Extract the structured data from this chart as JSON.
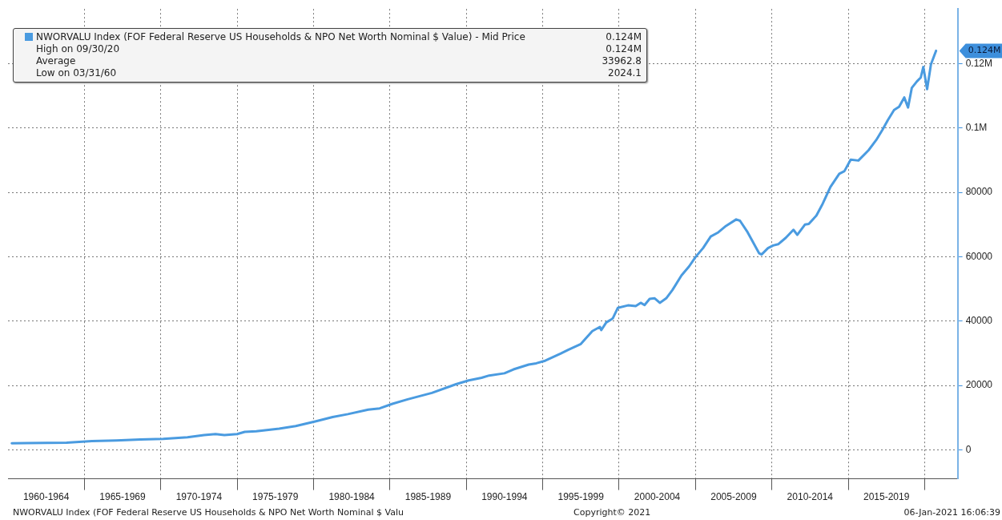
{
  "chart_data": {
    "type": "line",
    "x": [
      "1960-03-31",
      "1961-04",
      "1963-11",
      "1965-07",
      "1967-02",
      "1968-09",
      "1970-03",
      "1971-10",
      "1972-11",
      "1973-08",
      "1974-03",
      "1975-01",
      "1975-07",
      "1976-04",
      "1977-10",
      "1978-11",
      "1980-03",
      "1981-04",
      "1982-04",
      "1983-08",
      "1984-05",
      "1985-03",
      "1986-03",
      "1987-10",
      "1989-05",
      "1990-03",
      "1991-01",
      "1991-07",
      "1992-07",
      "1993-02",
      "1994-02",
      "1994-08",
      "1995-03",
      "1996-03",
      "1996-09",
      "1997-07",
      "1998-04",
      "1998-10",
      "1998-11",
      "1999-03",
      "1999-08",
      "1999-12",
      "2000-08",
      "2001-02",
      "2001-06",
      "2001-09",
      "2002-01",
      "2002-05",
      "2002-09",
      "2003-02",
      "2003-07",
      "2004-02",
      "2004-08",
      "2005-01",
      "2005-07",
      "2006-01",
      "2006-07",
      "2007-01",
      "2007-09",
      "2007-12",
      "2008-06",
      "2009-03",
      "2009-05",
      "2009-10",
      "2010-02",
      "2010-06",
      "2010-12",
      "2011-06",
      "2011-09",
      "2012-03",
      "2012-06",
      "2012-12",
      "2013-05",
      "2013-11",
      "2014-06",
      "2014-10",
      "2015-03",
      "2015-09",
      "2016-05",
      "2016-11",
      "2017-04",
      "2017-08",
      "2018-01",
      "2018-05",
      "2018-09",
      "2018-12",
      "2019-03",
      "2019-07",
      "2019-10",
      "2019-12",
      "2020-03",
      "2020-06",
      "2020-09-30"
    ],
    "series": [
      {
        "name": "NWORVALU Index (FOF Federal Reserve US Households & NPO Net Worth Nominal $ Value) - Mid Price",
        "color": "#4a9be0",
        "values": [
          2024.1,
          2100,
          2200,
          2700,
          2900,
          3200,
          3400,
          3900,
          4600,
          4900,
          4600,
          4900,
          5600,
          5800,
          6600,
          7400,
          8900,
          10200,
          11100,
          12500,
          12900,
          14300,
          15700,
          17700,
          20400,
          21600,
          22400,
          23100,
          23800,
          25000,
          26500,
          26900,
          27700,
          29900,
          31100,
          32900,
          36900,
          38200,
          37200,
          39600,
          40800,
          44100,
          44900,
          44700,
          45700,
          45000,
          46900,
          47100,
          45700,
          47100,
          49700,
          54200,
          57000,
          59900,
          62700,
          66300,
          67600,
          69600,
          71600,
          71200,
          67600,
          61100,
          60700,
          62700,
          63500,
          63900,
          65900,
          68400,
          66800,
          70000,
          70200,
          72800,
          76500,
          81700,
          85800,
          86600,
          90200,
          89900,
          93100,
          96300,
          99500,
          102400,
          105600,
          106600,
          109500,
          106400,
          112500,
          114500,
          115700,
          119000,
          112100,
          119800,
          124000
        ]
      }
    ],
    "xlim": [
      "1960-01",
      "2022-03"
    ],
    "xticks": [
      {
        "value": "1962-07",
        "label": "1960-1964"
      },
      {
        "value": "1965",
        "label": null
      },
      {
        "value": "1967-07",
        "label": "1965-1969"
      },
      {
        "value": "1970",
        "label": null
      },
      {
        "value": "1972-07",
        "label": "1970-1974"
      },
      {
        "value": "1975",
        "label": null
      },
      {
        "value": "1977-07",
        "label": "1975-1979"
      },
      {
        "value": "1980",
        "label": null
      },
      {
        "value": "1982-07",
        "label": "1980-1984"
      },
      {
        "value": "1985",
        "label": null
      },
      {
        "value": "1987-07",
        "label": "1985-1989"
      },
      {
        "value": "1990",
        "label": null
      },
      {
        "value": "1992-07",
        "label": "1990-1994"
      },
      {
        "value": "1995",
        "label": null
      },
      {
        "value": "1997-07",
        "label": "1995-1999"
      },
      {
        "value": "2000",
        "label": null
      },
      {
        "value": "2002-07",
        "label": "2000-2004"
      },
      {
        "value": "2005",
        "label": null
      },
      {
        "value": "2007-07",
        "label": "2005-2009"
      },
      {
        "value": "2010",
        "label": null
      },
      {
        "value": "2012-07",
        "label": "2010-2014"
      },
      {
        "value": "2015",
        "label": null
      },
      {
        "value": "2017-07",
        "label": "2015-2019"
      },
      {
        "value": "2020",
        "label": null
      }
    ],
    "ylim": [
      -9000,
      137000
    ],
    "yticks": [
      0,
      20000,
      40000,
      60000,
      80000,
      {
        "value": 100000,
        "label": "0.1M"
      },
      {
        "value": 120000,
        "label": "0.12M"
      }
    ],
    "grid": true,
    "legend": "top left",
    "marker": "none",
    "line_style": "solid",
    "annotations": [
      "0.124M",
      "High on 09/30/20",
      "0.124M",
      "Average",
      "33962.8",
      "Low on 03/31/60",
      "2024.1",
      "NWORVALU Index (FOF Federal Reserve US Households & NPO Net Worth Nominal $ Valu",
      "Copyright© 2021",
      "06-Jan-2021 16:06:39",
      "0.124M"
    ]
  }
}
